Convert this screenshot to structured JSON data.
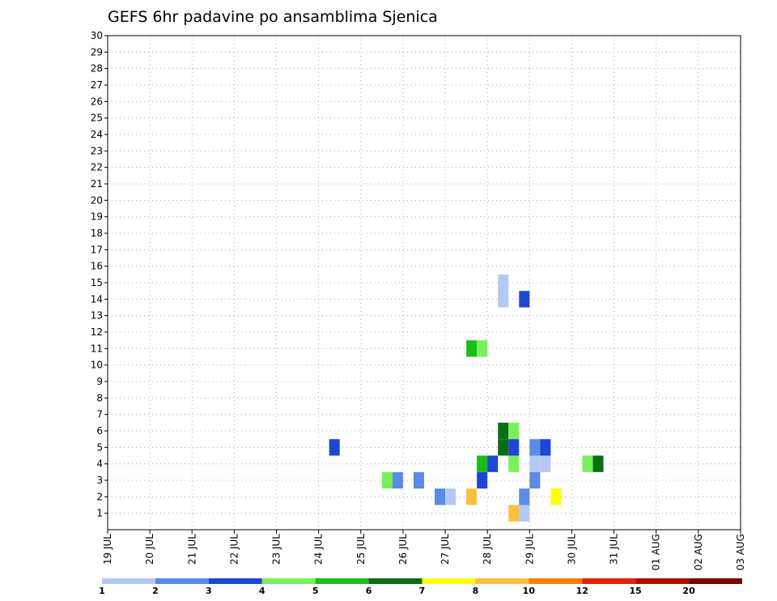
{
  "chart_data": {
    "type": "heatmap",
    "title": "GEFS 6hr padavine po ansamblima Sjenica",
    "x_tick_labels": [
      "19 JUL",
      "20 JUL",
      "21 JUL",
      "22 JUL",
      "23 JUL",
      "24 JUL",
      "25 JUL",
      "26 JUL",
      "27 JUL",
      "28 JUL",
      "29 JUL",
      "30 JUL",
      "31 JUL",
      "01 AUG",
      "02 AUG",
      "03 AUG"
    ],
    "y_tick_labels": [
      "1",
      "2",
      "3",
      "4",
      "5",
      "6",
      "7",
      "8",
      "9",
      "10",
      "11",
      "12",
      "13",
      "14",
      "15",
      "16",
      "17",
      "18",
      "19",
      "20",
      "21",
      "22",
      "23",
      "24",
      "25",
      "26",
      "27",
      "28",
      "29",
      "30"
    ],
    "xlim_steps": [
      0,
      60
    ],
    "ylim": [
      0,
      30
    ],
    "grid": true,
    "colorbar": {
      "labels": [
        "1",
        "2",
        "3",
        "4",
        "5",
        "6",
        "7",
        "8",
        "10",
        "12",
        "15",
        "20"
      ],
      "colors": [
        "#b4c8f5",
        "#5a8ce6",
        "#1e46d2",
        "#78f05a",
        "#19be19",
        "#0a6e14",
        "#ffff00",
        "#ffbe3c",
        "#ff7d00",
        "#e61e00",
        "#b40a00",
        "#780000"
      ]
    },
    "cells": [
      {
        "t": 38,
        "m": 1,
        "c": 8
      },
      {
        "t": 39,
        "m": 1,
        "c": 1
      },
      {
        "t": 39,
        "m": 2,
        "c": 2
      },
      {
        "t": 40,
        "m": 3,
        "c": 2
      },
      {
        "t": 38,
        "m": 4,
        "c": 4
      },
      {
        "t": 40,
        "m": 4,
        "c": 1
      },
      {
        "t": 42,
        "m": 2,
        "c": 7
      },
      {
        "t": 40,
        "m": 5,
        "c": 2
      },
      {
        "t": 41,
        "m": 5,
        "c": 3
      },
      {
        "t": 37,
        "m": 6,
        "c": 6
      },
      {
        "t": 38,
        "m": 6,
        "c": 4
      },
      {
        "t": 37,
        "m": 5,
        "c": 6
      },
      {
        "t": 38,
        "m": 5,
        "c": 3
      },
      {
        "t": 35,
        "m": 4,
        "c": 5
      },
      {
        "t": 36,
        "m": 4,
        "c": 3
      },
      {
        "t": 34,
        "m": 11,
        "c": 5
      },
      {
        "t": 35,
        "m": 11,
        "c": 4
      },
      {
        "t": 45,
        "m": 4,
        "c": 4
      },
      {
        "t": 46,
        "m": 4,
        "c": 6
      },
      {
        "t": 31,
        "m": 2,
        "c": 2
      },
      {
        "t": 32,
        "m": 2,
        "c": 1
      },
      {
        "t": 34,
        "m": 2,
        "c": 8
      },
      {
        "t": 35,
        "m": 3,
        "c": 3
      },
      {
        "t": 26,
        "m": 3,
        "c": 4
      },
      {
        "t": 27,
        "m": 3,
        "c": 2
      },
      {
        "t": 29,
        "m": 3,
        "c": 2
      },
      {
        "t": 21,
        "m": 5,
        "c": 3
      },
      {
        "t": 37,
        "m": 14,
        "c": 1
      },
      {
        "t": 37,
        "m": 15,
        "c": 1
      },
      {
        "t": 39,
        "m": 14,
        "c": 3
      },
      {
        "t": 41,
        "m": 4,
        "c": 1
      }
    ]
  }
}
